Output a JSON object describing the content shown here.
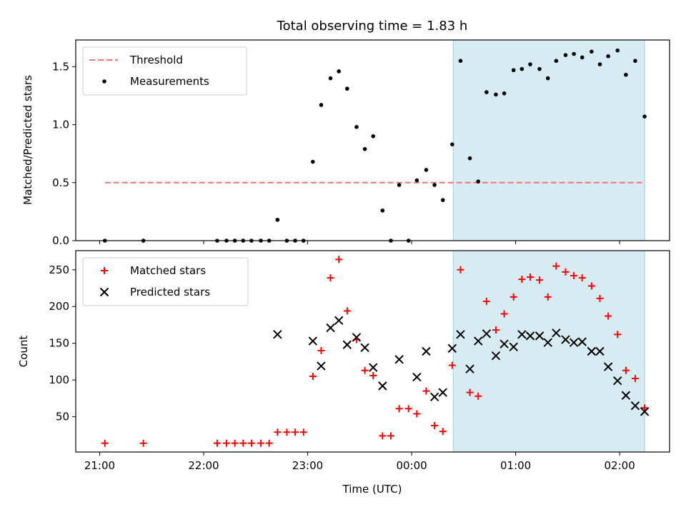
{
  "chart_data": [
    {
      "type": "scatter",
      "title": "Total observing time = 1.83 h",
      "ylabel": "Matched/Predicted stars",
      "xlabel": "",
      "xlim_hours": [
        20.77,
        26.48
      ],
      "ylim": [
        0,
        1.73
      ],
      "yticks": [
        0.0,
        0.5,
        1.0,
        1.5
      ],
      "ytick_labels": [
        "0.0",
        "0.5",
        "1.0",
        "1.5"
      ],
      "shaded_region": {
        "x0": 24.4,
        "x1": 26.24,
        "color": "#add8e6"
      },
      "legend_position": "upper-left",
      "legend": [
        {
          "label": "Threshold",
          "marker": "dashed-line",
          "color": "#ff7070"
        },
        {
          "label": "Measurements",
          "marker": "dot",
          "color": "#000000"
        }
      ],
      "series": [
        {
          "name": "Threshold",
          "kind": "line",
          "color": "#ff7070",
          "x": [
            21.05,
            26.24
          ],
          "y": [
            0.5,
            0.5
          ]
        },
        {
          "name": "Measurements",
          "kind": "scatter",
          "color": "#000000",
          "x": [
            21.05,
            21.42,
            22.13,
            22.22,
            22.3,
            22.38,
            22.46,
            22.55,
            22.63,
            22.71,
            22.8,
            22.88,
            22.96,
            23.05,
            23.13,
            23.22,
            23.3,
            23.38,
            23.47,
            23.55,
            23.63,
            23.72,
            23.8,
            23.88,
            23.97,
            24.05,
            24.14,
            24.22,
            24.3,
            24.39,
            24.47,
            24.56,
            24.64,
            24.72,
            24.81,
            24.89,
            24.98,
            25.06,
            25.14,
            25.23,
            25.31,
            25.39,
            25.48,
            25.56,
            25.64,
            25.73,
            25.81,
            25.89,
            25.98,
            26.06,
            26.15,
            26.24
          ],
          "y": [
            0,
            0,
            0,
            0,
            0,
            0,
            0,
            0,
            0,
            0.18,
            0,
            0,
            0,
            0.68,
            1.17,
            1.4,
            1.46,
            1.31,
            0.98,
            0.79,
            0.9,
            0.26,
            0,
            0.48,
            0,
            0.52,
            0.61,
            0.48,
            0.35,
            0.83,
            1.55,
            0.71,
            0.51,
            1.28,
            1.26,
            1.27,
            1.47,
            1.48,
            1.52,
            1.48,
            1.4,
            1.55,
            1.6,
            1.61,
            1.58,
            1.63,
            1.52,
            1.59,
            1.64,
            1.43,
            1.55,
            1.07
          ]
        }
      ]
    },
    {
      "type": "scatter",
      "title": "",
      "ylabel": "Count",
      "xlabel": "Time (UTC)",
      "xlim_hours": [
        20.77,
        26.48
      ],
      "ylim": [
        2,
        276
      ],
      "yticks": [
        50,
        100,
        150,
        200,
        250
      ],
      "ytick_labels": [
        "50",
        "100",
        "150",
        "200",
        "250"
      ],
      "xticks_hours": [
        21,
        22,
        23,
        24,
        25,
        26
      ],
      "xtick_labels": [
        "21:00",
        "22:00",
        "23:00",
        "00:00",
        "01:00",
        "02:00"
      ],
      "shaded_region": {
        "x0": 24.4,
        "x1": 26.24,
        "color": "#add8e6"
      },
      "legend_position": "upper-left",
      "legend": [
        {
          "label": "Matched stars",
          "marker": "plus",
          "color": "#ff0000"
        },
        {
          "label": "Predicted stars",
          "marker": "x",
          "color": "#000000"
        }
      ],
      "series": [
        {
          "name": "Matched stars",
          "kind": "plus",
          "color": "#ff0000",
          "x": [
            21.05,
            21.42,
            22.13,
            22.22,
            22.3,
            22.38,
            22.46,
            22.55,
            22.63,
            22.71,
            22.8,
            22.88,
            22.96,
            23.05,
            23.13,
            23.22,
            23.3,
            23.38,
            23.47,
            23.55,
            23.63,
            23.72,
            23.8,
            23.88,
            23.97,
            24.05,
            24.14,
            24.22,
            24.3,
            24.39,
            24.47,
            24.56,
            24.64,
            24.72,
            24.81,
            24.89,
            24.98,
            25.06,
            25.14,
            25.23,
            25.31,
            25.39,
            25.48,
            25.56,
            25.64,
            25.73,
            25.81,
            25.89,
            25.98,
            26.06,
            26.15,
            26.24
          ],
          "y": [
            14,
            14,
            14,
            14,
            14,
            14,
            14,
            14,
            14,
            29,
            29,
            29,
            29,
            105,
            140,
            239,
            264,
            194,
            155,
            113,
            106,
            24,
            24,
            61,
            61,
            54,
            85,
            38,
            30,
            120,
            250,
            83,
            78,
            207,
            168,
            190,
            213,
            237,
            240,
            236,
            213,
            255,
            247,
            242,
            239,
            228,
            211,
            187,
            162,
            113,
            102,
            62
          ]
        },
        {
          "name": "Predicted stars",
          "kind": "x",
          "color": "#000000",
          "x": [
            22.71,
            23.05,
            23.13,
            23.22,
            23.3,
            23.38,
            23.47,
            23.55,
            23.63,
            23.72,
            23.88,
            24.05,
            24.14,
            24.22,
            24.3,
            24.39,
            24.47,
            24.56,
            24.64,
            24.72,
            24.81,
            24.89,
            24.98,
            25.06,
            25.14,
            25.23,
            25.31,
            25.39,
            25.48,
            25.56,
            25.64,
            25.73,
            25.81,
            25.89,
            25.98,
            26.06,
            26.15,
            26.24
          ],
          "y": [
            162,
            153,
            119,
            171,
            181,
            148,
            158,
            144,
            117,
            92,
            128,
            104,
            139,
            77,
            83,
            143,
            162,
            115,
            153,
            163,
            133,
            149,
            145,
            162,
            160,
            160,
            151,
            164,
            155,
            151,
            152,
            139,
            139,
            118,
            99,
            79,
            65,
            57
          ]
        }
      ]
    }
  ]
}
